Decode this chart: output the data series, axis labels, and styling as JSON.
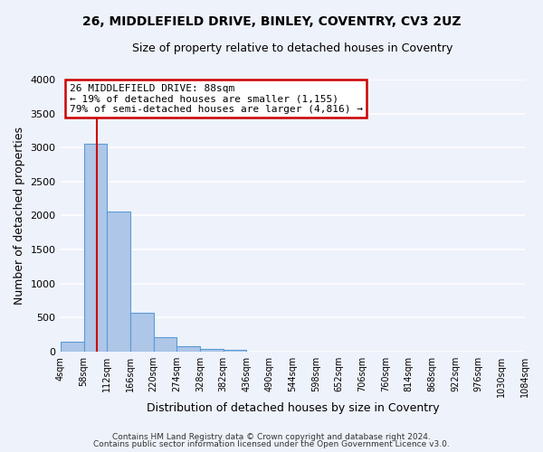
{
  "title": "26, MIDDLEFIELD DRIVE, BINLEY, COVENTRY, CV3 2UZ",
  "subtitle": "Size of property relative to detached houses in Coventry",
  "xlabel": "Distribution of detached houses by size in Coventry",
  "ylabel": "Number of detached properties",
  "bar_left_edges": [
    4,
    58,
    112,
    166,
    220,
    274,
    328,
    382,
    436,
    490,
    544,
    598,
    652,
    706,
    760,
    814,
    868,
    922,
    976,
    1030
  ],
  "bar_heights": [
    150,
    3060,
    2060,
    570,
    205,
    75,
    40,
    30,
    0,
    0,
    0,
    0,
    0,
    0,
    0,
    0,
    0,
    0,
    0,
    0
  ],
  "bin_width": 54,
  "bar_color": "#aec6e8",
  "bar_edge_color": "#5b9bd5",
  "property_line_x": 88,
  "property_line_color": "#cc0000",
  "ylim": [
    0,
    4000
  ],
  "yticks": [
    0,
    500,
    1000,
    1500,
    2000,
    2500,
    3000,
    3500,
    4000
  ],
  "xtick_labels": [
    "4sqm",
    "58sqm",
    "112sqm",
    "166sqm",
    "220sqm",
    "274sqm",
    "328sqm",
    "382sqm",
    "436sqm",
    "490sqm",
    "544sqm",
    "598sqm",
    "652sqm",
    "706sqm",
    "760sqm",
    "814sqm",
    "868sqm",
    "922sqm",
    "976sqm",
    "1030sqm",
    "1084sqm"
  ],
  "annotation_title": "26 MIDDLEFIELD DRIVE: 88sqm",
  "annotation_line1": "← 19% of detached houses are smaller (1,155)",
  "annotation_line2": "79% of semi-detached houses are larger (4,816) →",
  "annotation_box_color": "#ffffff",
  "annotation_box_edge_color": "#cc0000",
  "footer_line1": "Contains HM Land Registry data © Crown copyright and database right 2024.",
  "footer_line2": "Contains public sector information licensed under the Open Government Licence v3.0.",
  "background_color": "#eef2fb",
  "grid_color": "#ffffff",
  "fig_width": 6.0,
  "fig_height": 5.0,
  "dpi": 100
}
